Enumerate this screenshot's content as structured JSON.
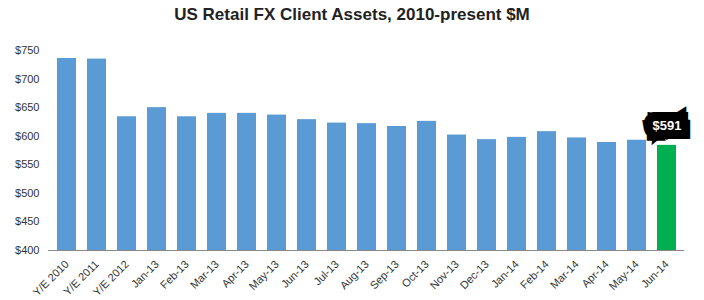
{
  "chart_data": {
    "type": "bar",
    "title": "US Retail FX Client Assets, 2010-present $M",
    "categories": [
      "Y/E 2010",
      "Y/E 2011",
      "Y/E 2012",
      "Jan-13",
      "Feb-13",
      "Mar-13",
      "Apr-13",
      "May-13",
      "Jun-13",
      "Jul-13",
      "Aug-13",
      "Sep-13",
      "Oct-13",
      "Nov-13",
      "Dec-13",
      "Jan-14",
      "Feb-14",
      "Mar-14",
      "Apr-14",
      "May-14",
      "Jun-14"
    ],
    "values": [
      743,
      742,
      641,
      657,
      641,
      647,
      647,
      644,
      636,
      630,
      629,
      624,
      633,
      609,
      601,
      605,
      615,
      604,
      596,
      600,
      591
    ],
    "value_labels": [
      null,
      null,
      null,
      null,
      null,
      null,
      null,
      null,
      null,
      null,
      null,
      null,
      null,
      null,
      null,
      null,
      null,
      null,
      null,
      null,
      "$591"
    ],
    "data_labels": true,
    "colors": [
      "#5b9bd5",
      "#5b9bd5",
      "#5b9bd5",
      "#5b9bd5",
      "#5b9bd5",
      "#5b9bd5",
      "#5b9bd5",
      "#5b9bd5",
      "#5b9bd5",
      "#5b9bd5",
      "#5b9bd5",
      "#5b9bd5",
      "#5b9bd5",
      "#5b9bd5",
      "#5b9bd5",
      "#5b9bd5",
      "#5b9bd5",
      "#5b9bd5",
      "#5b9bd5",
      "#5b9bd5",
      "#00b050"
    ],
    "ylim": [
      400,
      750
    ],
    "yticks": [
      {
        "value": 400,
        "label": "$400"
      },
      {
        "value": 450,
        "label": "$450"
      },
      {
        "value": 500,
        "label": "$500"
      },
      {
        "value": 550,
        "label": "$550"
      },
      {
        "value": 600,
        "label": "$600"
      },
      {
        "value": 650,
        "label": "$650"
      },
      {
        "value": 700,
        "label": "$700"
      },
      {
        "value": 750,
        "label": "$750"
      }
    ],
    "grid": false
  }
}
